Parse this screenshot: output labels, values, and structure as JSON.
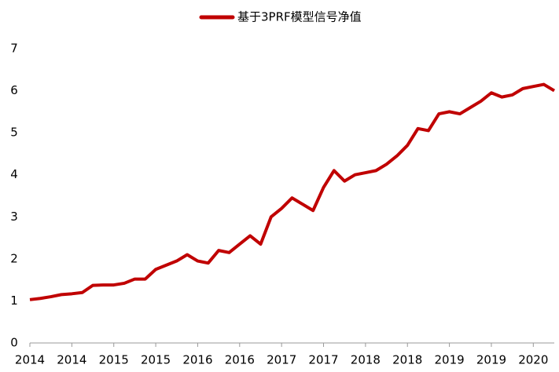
{
  "chart_data": {
    "type": "line",
    "categories": [
      "2014",
      null,
      null,
      null,
      "2014",
      null,
      null,
      null,
      "2015",
      null,
      null,
      null,
      "2015",
      null,
      null,
      null,
      "2016",
      null,
      null,
      null,
      "2016",
      null,
      null,
      null,
      "2017",
      null,
      null,
      null,
      "2017",
      null,
      null,
      null,
      "2018",
      null,
      null,
      null,
      "2018",
      null,
      null,
      null,
      "2019",
      null,
      null,
      null,
      "2019",
      null,
      null,
      null,
      "2020",
      null,
      null
    ],
    "series": [
      {
        "name": "基于3PRF模型信号净值",
        "color": "#c00000",
        "values": [
          1.03,
          1.06,
          1.1,
          1.15,
          1.17,
          1.2,
          1.37,
          1.38,
          1.38,
          1.42,
          1.52,
          1.52,
          1.75,
          1.85,
          1.95,
          2.1,
          1.95,
          1.9,
          2.2,
          2.15,
          2.35,
          2.55,
          2.35,
          3.0,
          3.2,
          3.45,
          3.3,
          3.15,
          3.7,
          4.1,
          3.85,
          4.0,
          4.05,
          4.1,
          4.25,
          4.45,
          4.7,
          5.1,
          5.05,
          5.45,
          5.5,
          5.45,
          5.6,
          5.75,
          5.95,
          5.85,
          5.9,
          6.05,
          6.1,
          6.15,
          6.0
        ]
      }
    ],
    "ylim": [
      0,
      7
    ],
    "yticks": [
      0,
      1,
      2,
      3,
      4,
      5,
      6,
      7
    ],
    "grid": false,
    "legend": "top"
  }
}
